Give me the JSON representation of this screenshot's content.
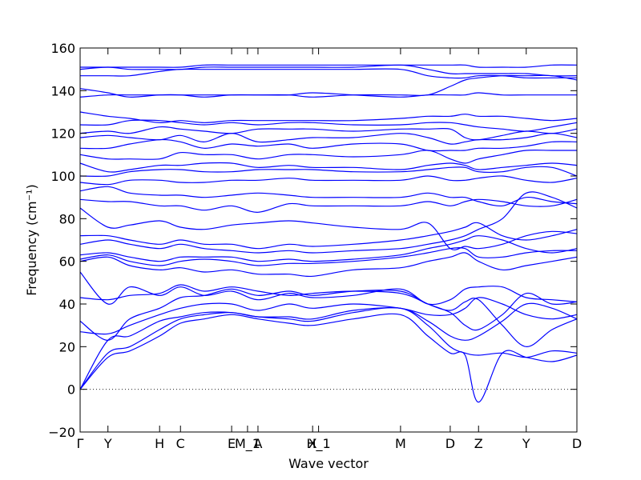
{
  "chart_data": {
    "type": "line",
    "x_label": "Wave vector",
    "y_label": "Frequency (cm⁻¹)",
    "color": "#0000ff",
    "xlim": [
      0,
      1
    ],
    "ylim": [
      -20,
      160
    ],
    "yticks": [
      {
        "value": -20,
        "label": "−20"
      },
      0,
      20,
      40,
      60,
      80,
      100,
      120,
      140,
      160
    ],
    "xticks": [
      {
        "value": 0,
        "label": "Γ"
      },
      {
        "value": 0.056,
        "label": "Y"
      },
      {
        "value": 0.16,
        "label": "H"
      },
      {
        "value": 0.202,
        "label": "C"
      },
      {
        "value": 0.305,
        "label": "E"
      },
      {
        "value": 0.337,
        "label": "M_1"
      },
      {
        "value": 0.358,
        "label": "A"
      },
      {
        "value": 0.468,
        "label": "X"
      },
      {
        "value": 0.48,
        "label": "H_1"
      },
      {
        "value": 0.645,
        "label": "M"
      },
      {
        "value": 0.745,
        "label": "D"
      },
      {
        "value": 0.802,
        "label": "Z"
      },
      {
        "value": 0.898,
        "label": "Y"
      },
      {
        "value": 1,
        "label": "D"
      }
    ],
    "hlines": [
      0
    ],
    "x": [
      0,
      0.056,
      0.1,
      0.16,
      0.202,
      0.25,
      0.305,
      0.358,
      0.42,
      0.468,
      0.55,
      0.645,
      0.7,
      0.745,
      0.775,
      0.802,
      0.85,
      0.898,
      0.95,
      1.0
    ],
    "series": [
      {
        "values": [
          0,
          15,
          18,
          25,
          31,
          33,
          35,
          33,
          31,
          30,
          33,
          35,
          25,
          17,
          16,
          -6,
          17,
          15,
          13,
          16
        ]
      },
      {
        "values": [
          0,
          17,
          20,
          28,
          33,
          35,
          36,
          34,
          33,
          32,
          36,
          38,
          30,
          20,
          17,
          16,
          17,
          15,
          18,
          17
        ]
      },
      {
        "values": [
          0,
          23,
          25,
          32,
          34,
          36,
          36,
          34,
          34,
          33,
          37,
          38,
          32,
          25,
          23,
          25,
          32,
          40,
          38,
          33
        ]
      },
      {
        "values": [
          27,
          26,
          30,
          35,
          38,
          40,
          40,
          37,
          40,
          38,
          40,
          38,
          35,
          35,
          38,
          43,
          40,
          35,
          33,
          35
        ]
      },
      {
        "values": [
          32,
          23,
          33,
          38,
          43,
          44,
          47,
          44,
          46,
          44,
          46,
          46,
          40,
          37,
          41,
          42,
          30,
          20,
          28,
          33
        ]
      },
      {
        "values": [
          43,
          42,
          44,
          45,
          49,
          46,
          48,
          46,
          44,
          45,
          46,
          45,
          40,
          36,
          30,
          28,
          35,
          45,
          40,
          41
        ]
      },
      {
        "values": [
          55,
          40,
          48,
          44,
          48,
          44,
          46,
          42,
          45,
          43,
          44,
          47,
          40,
          42,
          47,
          48,
          48,
          43,
          42,
          41
        ]
      },
      {
        "values": [
          60,
          62,
          58,
          56,
          57,
          55,
          56,
          54,
          54,
          53,
          56,
          57,
          60,
          62,
          64,
          60,
          56,
          58,
          60,
          62
        ]
      },
      {
        "values": [
          61,
          63,
          60,
          58,
          60,
          61,
          60,
          58,
          59,
          59,
          60,
          62,
          64,
          66,
          66,
          62,
          62,
          64,
          65,
          65
        ]
      },
      {
        "values": [
          63,
          64,
          62,
          60,
          62,
          62,
          62,
          60,
          61,
          60,
          61,
          63,
          66,
          68,
          70,
          72,
          70,
          66,
          64,
          66
        ]
      },
      {
        "values": [
          68,
          70,
          68,
          66,
          68,
          66,
          65,
          64,
          65,
          64,
          65,
          66,
          68,
          70,
          72,
          75,
          80,
          92,
          90,
          85
        ]
      },
      {
        "values": [
          72,
          72,
          70,
          68,
          70,
          68,
          68,
          66,
          68,
          67,
          68,
          70,
          72,
          74,
          76,
          78,
          72,
          70,
          72,
          75
        ]
      },
      {
        "values": [
          85,
          76,
          77,
          79,
          76,
          75,
          77,
          78,
          79,
          78,
          76,
          75,
          78,
          66,
          67,
          66,
          68,
          72,
          74,
          73
        ]
      },
      {
        "values": [
          89,
          88,
          88,
          86,
          86,
          84,
          86,
          83,
          87,
          86,
          86,
          86,
          88,
          86,
          88,
          89,
          88,
          86,
          86,
          89
        ]
      },
      {
        "values": [
          93,
          95,
          92,
          91,
          91,
          90,
          91,
          92,
          91,
          90,
          90,
          90,
          92,
          90,
          90,
          88,
          86,
          90,
          88,
          87
        ]
      },
      {
        "values": [
          97,
          96,
          98,
          98,
          97,
          97,
          98,
          98,
          99,
          98,
          98,
          98,
          100,
          98,
          98,
          99,
          100,
          98,
          97,
          99
        ]
      },
      {
        "values": [
          100,
          100,
          102,
          103,
          103,
          102,
          102,
          103,
          103,
          103,
          102,
          102,
          103,
          104,
          104,
          102,
          102,
          104,
          104,
          100
        ]
      },
      {
        "values": [
          106,
          102,
          103,
          105,
          105,
          106,
          106,
          104,
          105,
          104,
          104,
          103,
          105,
          106,
          105,
          103,
          104,
          105,
          106,
          105
        ]
      },
      {
        "values": [
          110,
          108,
          108,
          108,
          111,
          110,
          110,
          108,
          110,
          110,
          109,
          110,
          112,
          108,
          106,
          108,
          110,
          112,
          112,
          112
        ]
      },
      {
        "values": [
          113,
          113,
          115,
          117,
          116,
          113,
          115,
          114,
          115,
          113,
          115,
          115,
          112,
          112,
          112,
          113,
          113,
          114,
          116,
          116
        ]
      },
      {
        "values": [
          118,
          119,
          118,
          117,
          119,
          116,
          120,
          116,
          117,
          118,
          118,
          120,
          118,
          115,
          116,
          117,
          117,
          118,
          120,
          118
        ]
      },
      {
        "values": [
          120,
          121,
          120,
          123,
          122,
          121,
          120,
          122,
          122,
          122,
          121,
          122,
          122,
          122,
          118,
          117,
          119,
          121,
          120,
          122
        ]
      },
      {
        "values": [
          124,
          124,
          126,
          126,
          125,
          124,
          125,
          124,
          125,
          125,
          124,
          124,
          125,
          125,
          124,
          123,
          122,
          121,
          123,
          125
        ]
      },
      {
        "values": [
          130,
          128,
          127,
          125,
          126,
          125,
          126,
          126,
          126,
          126,
          126,
          127,
          128,
          128,
          129,
          128,
          128,
          127,
          126,
          127
        ]
      },
      {
        "values": [
          137,
          138,
          138,
          138,
          138,
          138,
          138,
          138,
          138,
          139,
          138,
          137,
          138,
          138,
          138,
          139,
          138,
          138,
          138,
          138
        ]
      },
      {
        "values": [
          141,
          139,
          137,
          138,
          138,
          137,
          138,
          138,
          138,
          137,
          138,
          138,
          138,
          142,
          145,
          146,
          147,
          147,
          147,
          145
        ]
      },
      {
        "values": [
          147,
          147,
          147,
          149,
          150,
          150,
          150,
          150,
          150,
          150,
          150,
          150,
          147,
          146,
          146,
          147,
          147,
          146,
          146,
          146
        ]
      },
      {
        "values": [
          150,
          151,
          150,
          150,
          150,
          151,
          151,
          151,
          151,
          151,
          151,
          152,
          150,
          148,
          148,
          148,
          148,
          148,
          147,
          147
        ]
      },
      {
        "values": [
          151,
          151,
          151,
          151,
          151,
          152,
          152,
          152,
          152,
          152,
          152,
          152,
          152,
          152,
          152,
          151,
          151,
          151,
          152,
          152
        ]
      }
    ]
  }
}
